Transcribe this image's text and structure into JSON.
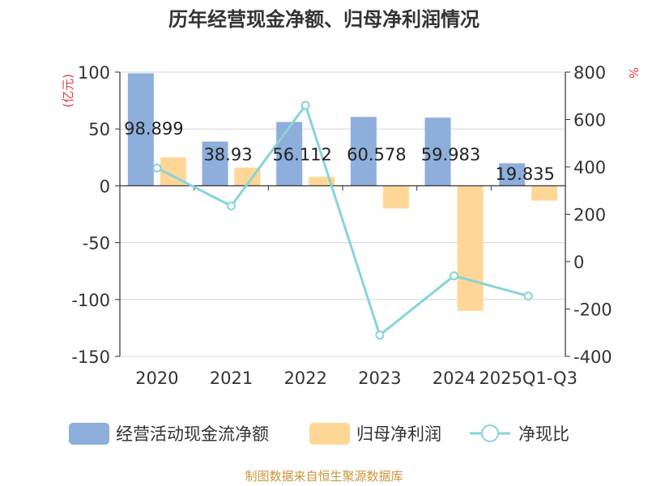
{
  "chart_data": {
    "type": "bar",
    "title": "历年经营现金净额、归母净利润情况",
    "categories": [
      "2020",
      "2021",
      "2022",
      "2023",
      "2024",
      "2025Q1-Q3"
    ],
    "series": [
      {
        "name": "经营活动现金流净额",
        "type": "bar",
        "axis": "left",
        "color": "#8eaedc",
        "values": [
          98.899,
          38.93,
          56.112,
          60.578,
          59.983,
          19.835
        ]
      },
      {
        "name": "归母净利润",
        "type": "bar",
        "axis": "left",
        "color": "#fed797",
        "values": [
          25,
          16,
          8,
          -20,
          -110,
          -13
        ]
      },
      {
        "name": "净现比",
        "type": "line",
        "axis": "right",
        "color": "#87d4d9",
        "values": [
          395,
          235,
          660,
          -310,
          -60,
          -145
        ]
      }
    ],
    "data_labels": [
      "98.899",
      "38.93",
      "56.112",
      "60.578",
      "59.983",
      "19.835"
    ],
    "ylabel_left": "(亿元)",
    "ylabel_right": "%",
    "ylim_left": [
      -150,
      100
    ],
    "ylim_right": [
      -400,
      800
    ],
    "yticks_left": [
      "100",
      "50",
      "0",
      "-50",
      "-100",
      "-150"
    ],
    "yticks_right": [
      "800",
      "600",
      "400",
      "200",
      "0",
      "-200",
      "-400"
    ],
    "grid": true,
    "legend_position": "bottom",
    "source": "制图数据来自恒生聚源数据库"
  }
}
